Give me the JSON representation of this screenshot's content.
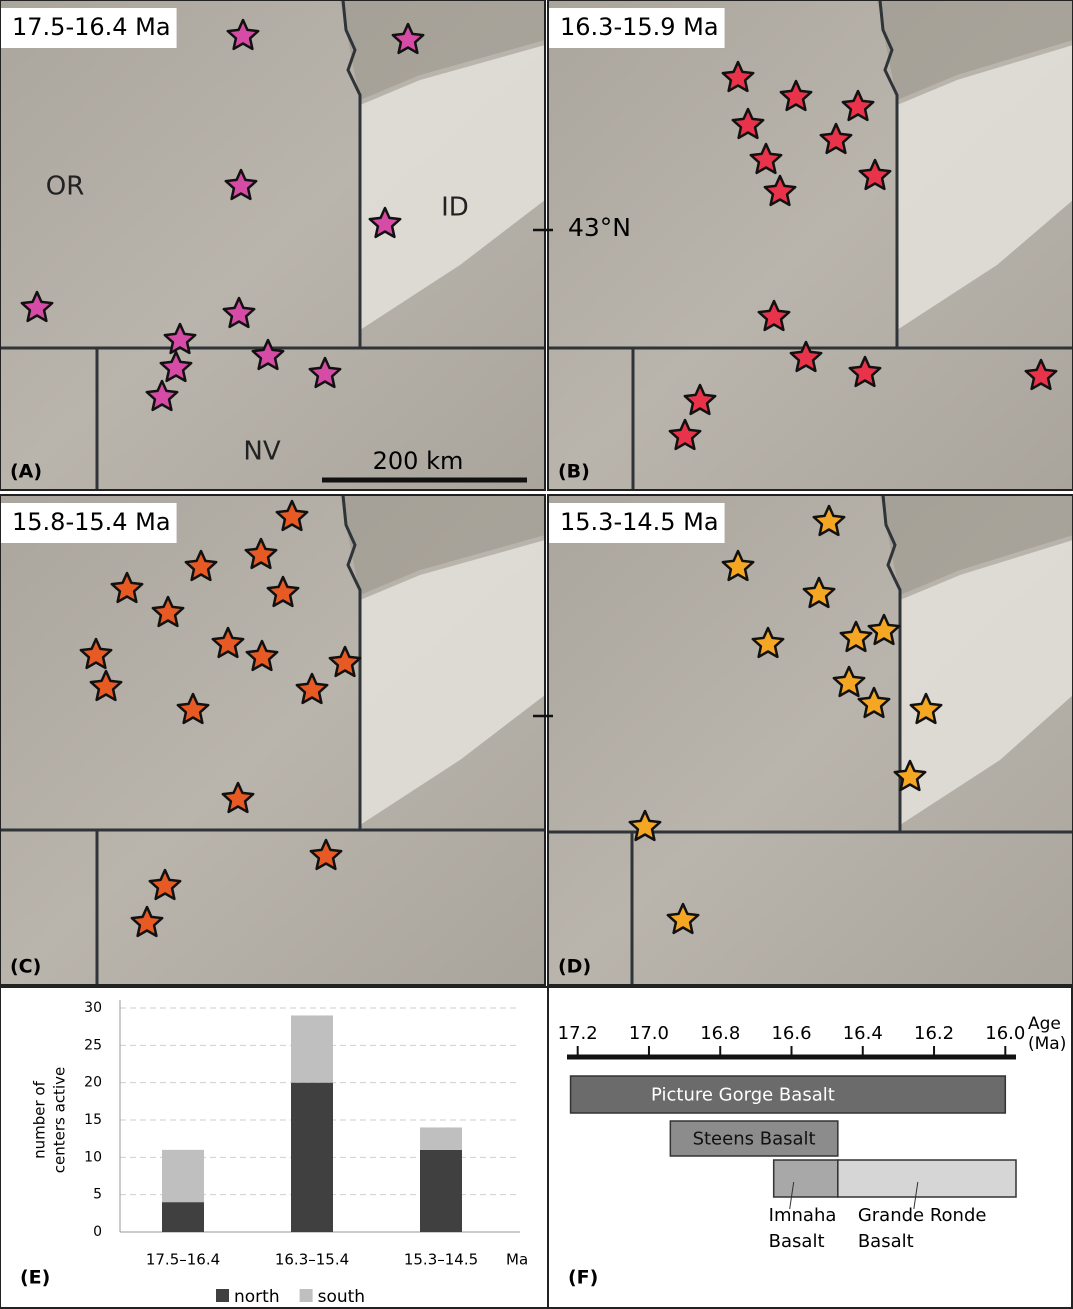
{
  "maps": [
    {
      "period": "17.5-16.4 Ma",
      "letter": "(A)",
      "labels": [
        "OR",
        "ID",
        "NV"
      ],
      "scale": "200 km"
    },
    {
      "period": "16.3-15.9 Ma",
      "letter": "(B)",
      "latitude": "43°N"
    },
    {
      "period": "15.8-15.4 Ma",
      "letter": "(C)"
    },
    {
      "period": "15.3-14.5 Ma",
      "letter": "(D)"
    }
  ],
  "chart_data": [
    {
      "type": "bar",
      "stacked": true,
      "panel_label": "(E)",
      "categories": [
        "17.5–16.4",
        "16.3–15.4",
        "15.3–14.5"
      ],
      "series": [
        {
          "name": "north",
          "color": "#404040",
          "values": [
            4,
            20,
            11
          ]
        },
        {
          "name": "south",
          "color": "#bfbfbf",
          "values": [
            7,
            9,
            3
          ]
        }
      ],
      "x_label": "Ma",
      "y_label": [
        "number of",
        "centers active"
      ],
      "ylim": [
        0,
        30
      ],
      "yticks": [
        0,
        5,
        10,
        15,
        20,
        25,
        30
      ],
      "grid": true,
      "legend": "bottom"
    },
    {
      "type": "timeline",
      "panel_label": "(F)",
      "x_label": [
        "Age",
        "(Ma)"
      ],
      "xlim": [
        17.23,
        15.97
      ],
      "xticks": [
        17.2,
        {
          "value": 17,
          "label": "17.0"
        },
        16.8,
        16.6,
        16.4,
        16.2,
        {
          "value": 16,
          "label": "16.0"
        }
      ],
      "bars": [
        {
          "name": "Picture Gorge Basalt",
          "start": 17.22,
          "end": 16.0,
          "color": "#6b6b6b"
        },
        {
          "name": "Steens Basalt",
          "start": 16.94,
          "end": 16.47,
          "color": "#8c8c8c"
        },
        {
          "name": [
            "Imnaha",
            "Basalt"
          ],
          "start": 16.65,
          "end": 16.47,
          "color": "#a8a8a8"
        },
        {
          "name": [
            "Grande Ronde",
            "Basalt"
          ],
          "start": 16.47,
          "end": 15.97,
          "color": "#d6d6d6"
        }
      ]
    }
  ]
}
